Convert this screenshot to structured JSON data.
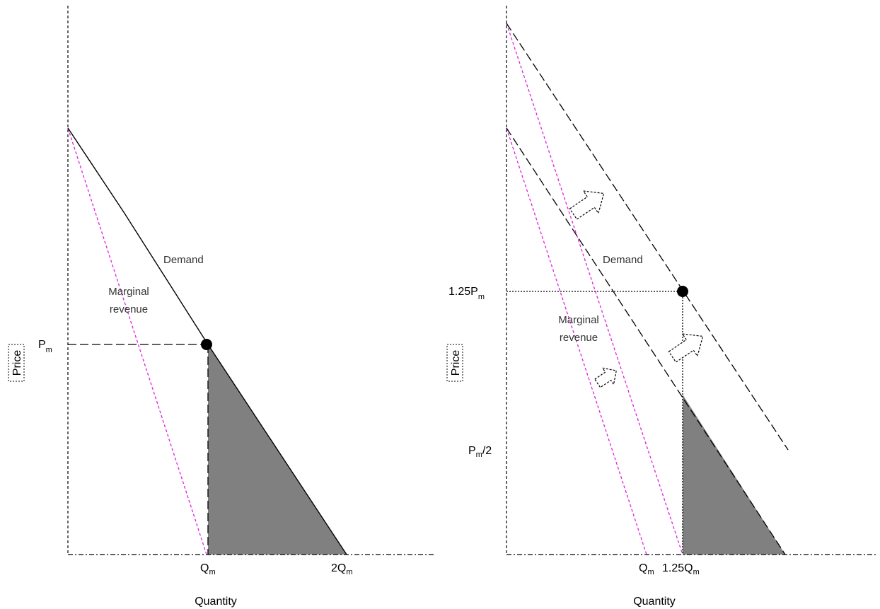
{
  "left_panel": {
    "y_axis_label": "Price",
    "x_axis_label": "Quantity",
    "price_label": "P",
    "price_label_sub": "m",
    "qty_label_1": "Q",
    "qty_label_1_sub": "m",
    "qty_label_2": "2Q",
    "qty_label_2_sub": "m",
    "demand_label": "Demand",
    "mr_label_line1": "Marginal",
    "mr_label_line2": "revenue"
  },
  "right_panel": {
    "y_axis_label": "Price",
    "x_axis_label": "Quantity",
    "price_high_label": "1.25P",
    "price_high_label_sub": "m",
    "price_low_label": "P",
    "price_low_label_sub": "m",
    "price_low_label_suffix": "/2",
    "qty_label_1": "Q",
    "qty_label_1_sub": "m",
    "qty_label_2": "1.25Q",
    "qty_label_2_sub": "m",
    "demand_label": "Demand",
    "mr_label_line1": "Marginal",
    "mr_label_line2": "revenue"
  },
  "colors": {
    "marginal_revenue": "#e020e0",
    "deadweight_area": "#808080",
    "lines": "#000000"
  }
}
